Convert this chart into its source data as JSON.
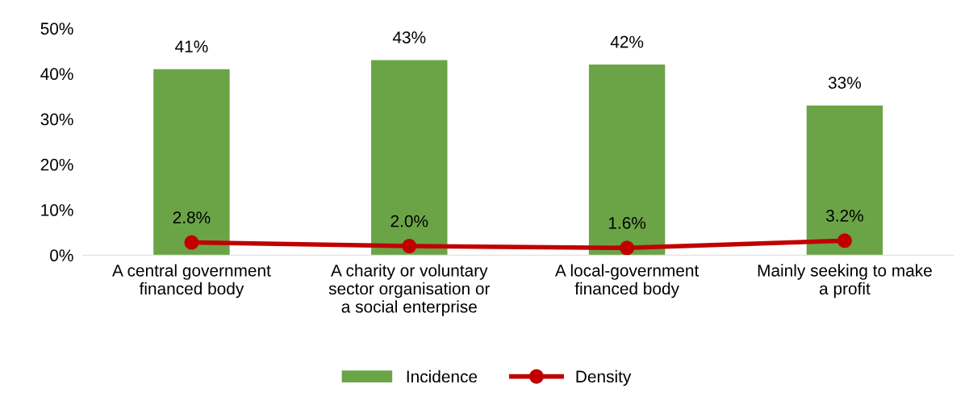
{
  "chart_data": {
    "type": "bar",
    "categories": [
      "A central government financed body",
      "A charity or voluntary sector organisation or a social enterprise",
      "A local-government financed body",
      "Mainly seeking to make a profit"
    ],
    "series": [
      {
        "name": "Incidence",
        "color": "#6aa447",
        "values": [
          41,
          43,
          42,
          33
        ],
        "value_labels": [
          "41%",
          "43%",
          "42%",
          "33%"
        ]
      },
      {
        "name": "Density",
        "type": "line",
        "color": "#c00000",
        "values": [
          2.8,
          2.0,
          1.6,
          3.2
        ],
        "value_labels": [
          "2.8%",
          "2.0%",
          "1.6%",
          "3.2%"
        ],
        "marker": "circle",
        "line_style": "solid"
      }
    ],
    "ylim": [
      0,
      50
    ],
    "yticks": [
      {
        "value": 0,
        "label": "0%"
      },
      {
        "value": 10,
        "label": "10%"
      },
      {
        "value": 20,
        "label": "20%"
      },
      {
        "value": 30,
        "label": "30%"
      },
      {
        "value": 40,
        "label": "40%"
      },
      {
        "value": 50,
        "label": "50%"
      }
    ],
    "grid": false,
    "legend": "bottom"
  }
}
